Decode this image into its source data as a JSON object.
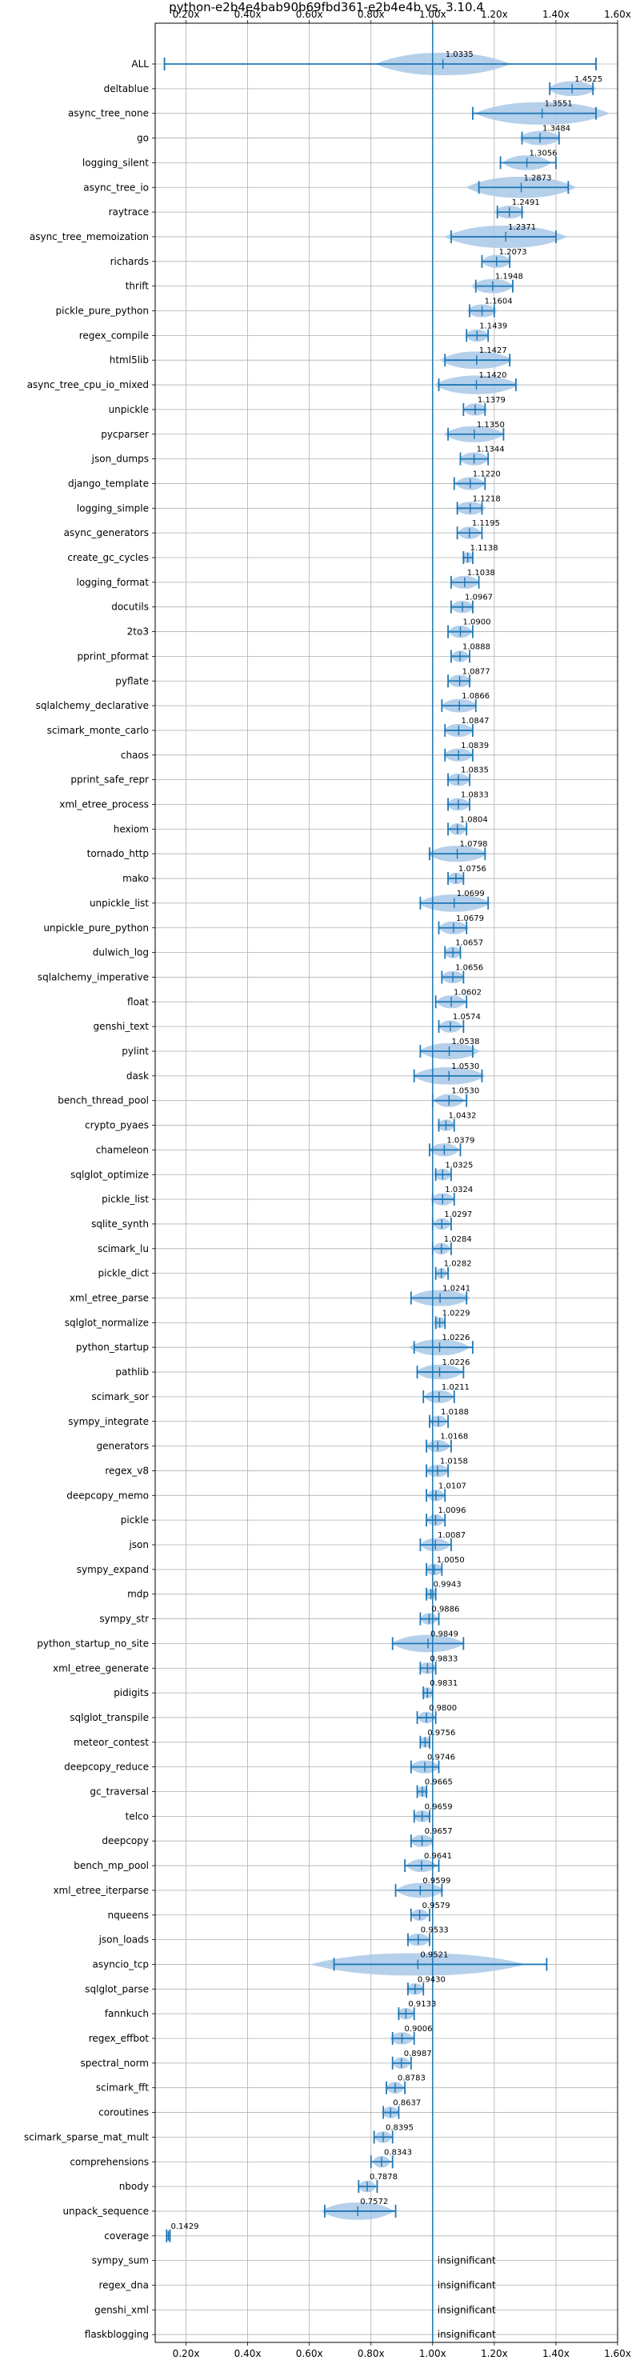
{
  "chart_data": {
    "type": "violin",
    "title": "python-e2b4e4bab90b69fbd361-e2b4e4b vs. 3.10.4",
    "xlim": [
      0.1,
      1.6
    ],
    "xticks": [
      0.2,
      0.4,
      0.6,
      0.8,
      1.0,
      1.2,
      1.4,
      1.6
    ],
    "xtick_labels": [
      "0.20x",
      "0.40x",
      "0.60x",
      "0.80x",
      "1.00x",
      "1.20x",
      "1.40x",
      "1.60x"
    ],
    "reference_line": 1.0,
    "grid": true,
    "colors": {
      "violin": "#a8c8e8",
      "errorbar": "#1f77b4",
      "refline": "#1f77b4",
      "grid": "#b0b0b0"
    },
    "insignificant_label": "insignificant",
    "benchmarks": [
      {
        "name": "ALL",
        "mean": 1.0335,
        "label": "1.0335",
        "min": 0.13,
        "max": 1.53,
        "width": 0.22
      },
      {
        "name": "deltablue",
        "mean": 1.4525,
        "label": "1.4525",
        "min": 1.38,
        "max": 1.52,
        "width": 0.08
      },
      {
        "name": "async_tree_none",
        "mean": 1.3551,
        "label": "1.3551",
        "min": 1.13,
        "max": 1.53,
        "width": 0.22
      },
      {
        "name": "go",
        "mean": 1.3484,
        "label": "1.3484",
        "min": 1.29,
        "max": 1.41,
        "width": 0.07
      },
      {
        "name": "logging_silent",
        "mean": 1.3056,
        "label": "1.3056",
        "min": 1.22,
        "max": 1.4,
        "width": 0.08
      },
      {
        "name": "async_tree_io",
        "mean": 1.2873,
        "label": "1.2873",
        "min": 1.15,
        "max": 1.44,
        "width": 0.18
      },
      {
        "name": "raytrace",
        "mean": 1.2491,
        "label": "1.2491",
        "min": 1.21,
        "max": 1.29,
        "width": 0.05
      },
      {
        "name": "async_tree_memoization",
        "mean": 1.2371,
        "label": "1.2371",
        "min": 1.06,
        "max": 1.4,
        "width": 0.2
      },
      {
        "name": "richards",
        "mean": 1.2073,
        "label": "1.2073",
        "min": 1.16,
        "max": 1.25,
        "width": 0.05
      },
      {
        "name": "thrift",
        "mean": 1.1948,
        "label": "1.1948",
        "min": 1.14,
        "max": 1.26,
        "width": 0.07
      },
      {
        "name": "pickle_pure_python",
        "mean": 1.1604,
        "label": "1.1604",
        "min": 1.12,
        "max": 1.2,
        "width": 0.05
      },
      {
        "name": "regex_compile",
        "mean": 1.1439,
        "label": "1.1439",
        "min": 1.11,
        "max": 1.18,
        "width": 0.04
      },
      {
        "name": "html5lib",
        "mean": 1.1427,
        "label": "1.1427",
        "min": 1.04,
        "max": 1.25,
        "width": 0.12
      },
      {
        "name": "async_tree_cpu_io_mixed",
        "mean": 1.142,
        "label": "1.1420",
        "min": 1.02,
        "max": 1.27,
        "width": 0.14
      },
      {
        "name": "unpickle",
        "mean": 1.1379,
        "label": "1.1379",
        "min": 1.1,
        "max": 1.17,
        "width": 0.04
      },
      {
        "name": "pycparser",
        "mean": 1.135,
        "label": "1.1350",
        "min": 1.05,
        "max": 1.23,
        "width": 0.1
      },
      {
        "name": "json_dumps",
        "mean": 1.1344,
        "label": "1.1344",
        "min": 1.09,
        "max": 1.18,
        "width": 0.05
      },
      {
        "name": "django_template",
        "mean": 1.122,
        "label": "1.1220",
        "min": 1.07,
        "max": 1.17,
        "width": 0.05
      },
      {
        "name": "logging_simple",
        "mean": 1.1218,
        "label": "1.1218",
        "min": 1.08,
        "max": 1.16,
        "width": 0.05
      },
      {
        "name": "async_generators",
        "mean": 1.1195,
        "label": "1.1195",
        "min": 1.08,
        "max": 1.16,
        "width": 0.04
      },
      {
        "name": "create_gc_cycles",
        "mean": 1.1138,
        "label": "1.1138",
        "min": 1.1,
        "max": 1.13,
        "width": 0.02
      },
      {
        "name": "logging_format",
        "mean": 1.1038,
        "label": "1.1038",
        "min": 1.06,
        "max": 1.15,
        "width": 0.05
      },
      {
        "name": "docutils",
        "mean": 1.0967,
        "label": "1.0967",
        "min": 1.06,
        "max": 1.13,
        "width": 0.04
      },
      {
        "name": "2to3",
        "mean": 1.09,
        "label": "1.0900",
        "min": 1.05,
        "max": 1.13,
        "width": 0.04
      },
      {
        "name": "pprint_pformat",
        "mean": 1.0888,
        "label": "1.0888",
        "min": 1.06,
        "max": 1.12,
        "width": 0.03
      },
      {
        "name": "pyflate",
        "mean": 1.0877,
        "label": "1.0877",
        "min": 1.05,
        "max": 1.12,
        "width": 0.04
      },
      {
        "name": "sqlalchemy_declarative",
        "mean": 1.0866,
        "label": "1.0866",
        "min": 1.03,
        "max": 1.14,
        "width": 0.06
      },
      {
        "name": "scimark_monte_carlo",
        "mean": 1.0847,
        "label": "1.0847",
        "min": 1.04,
        "max": 1.13,
        "width": 0.05
      },
      {
        "name": "chaos",
        "mean": 1.0839,
        "label": "1.0839",
        "min": 1.04,
        "max": 1.13,
        "width": 0.05
      },
      {
        "name": "pprint_safe_repr",
        "mean": 1.0835,
        "label": "1.0835",
        "min": 1.05,
        "max": 1.12,
        "width": 0.04
      },
      {
        "name": "xml_etree_process",
        "mean": 1.0833,
        "label": "1.0833",
        "min": 1.05,
        "max": 1.12,
        "width": 0.04
      },
      {
        "name": "hexiom",
        "mean": 1.0804,
        "label": "1.0804",
        "min": 1.05,
        "max": 1.11,
        "width": 0.03
      },
      {
        "name": "tornado_http",
        "mean": 1.0798,
        "label": "1.0798",
        "min": 0.99,
        "max": 1.17,
        "width": 0.1
      },
      {
        "name": "mako",
        "mean": 1.0756,
        "label": "1.0756",
        "min": 1.05,
        "max": 1.1,
        "width": 0.03
      },
      {
        "name": "unpickle_list",
        "mean": 1.0699,
        "label": "1.0699",
        "min": 0.96,
        "max": 1.18,
        "width": 0.12
      },
      {
        "name": "unpickle_pure_python",
        "mean": 1.0679,
        "label": "1.0679",
        "min": 1.02,
        "max": 1.11,
        "width": 0.05
      },
      {
        "name": "dulwich_log",
        "mean": 1.0657,
        "label": "1.0657",
        "min": 1.04,
        "max": 1.09,
        "width": 0.03
      },
      {
        "name": "sqlalchemy_imperative",
        "mean": 1.0656,
        "label": "1.0656",
        "min": 1.03,
        "max": 1.1,
        "width": 0.04
      },
      {
        "name": "float",
        "mean": 1.0602,
        "label": "1.0602",
        "min": 1.01,
        "max": 1.11,
        "width": 0.05
      },
      {
        "name": "genshi_text",
        "mean": 1.0574,
        "label": "1.0574",
        "min": 1.02,
        "max": 1.1,
        "width": 0.04
      },
      {
        "name": "pylint",
        "mean": 1.0538,
        "label": "1.0538",
        "min": 0.96,
        "max": 1.13,
        "width": 0.1
      },
      {
        "name": "dask",
        "mean": 1.053,
        "label": "1.0530",
        "min": 0.94,
        "max": 1.16,
        "width": 0.12
      },
      {
        "name": "bench_thread_pool",
        "mean": 1.053,
        "label": "1.0530",
        "min": 1.0,
        "max": 1.11,
        "width": 0.05
      },
      {
        "name": "crypto_pyaes",
        "mean": 1.0432,
        "label": "1.0432",
        "min": 1.02,
        "max": 1.07,
        "width": 0.03
      },
      {
        "name": "chameleon",
        "mean": 1.0379,
        "label": "1.0379",
        "min": 0.99,
        "max": 1.09,
        "width": 0.05
      },
      {
        "name": "sqlglot_optimize",
        "mean": 1.0325,
        "label": "1.0325",
        "min": 1.01,
        "max": 1.06,
        "width": 0.03
      },
      {
        "name": "pickle_list",
        "mean": 1.0324,
        "label": "1.0324",
        "min": 1.0,
        "max": 1.07,
        "width": 0.04
      },
      {
        "name": "sqlite_synth",
        "mean": 1.0297,
        "label": "1.0297",
        "min": 1.0,
        "max": 1.06,
        "width": 0.03
      },
      {
        "name": "scimark_lu",
        "mean": 1.0284,
        "label": "1.0284",
        "min": 1.0,
        "max": 1.06,
        "width": 0.03
      },
      {
        "name": "pickle_dict",
        "mean": 1.0282,
        "label": "1.0282",
        "min": 1.01,
        "max": 1.05,
        "width": 0.02
      },
      {
        "name": "xml_etree_parse",
        "mean": 1.0241,
        "label": "1.0241",
        "min": 0.93,
        "max": 1.11,
        "width": 0.1
      },
      {
        "name": "sqlglot_normalize",
        "mean": 1.0229,
        "label": "1.0229",
        "min": 1.01,
        "max": 1.04,
        "width": 0.02
      },
      {
        "name": "python_startup",
        "mean": 1.0226,
        "label": "1.0226",
        "min": 0.94,
        "max": 1.13,
        "width": 0.1
      },
      {
        "name": "pathlib",
        "mean": 1.0226,
        "label": "1.0226",
        "min": 0.95,
        "max": 1.1,
        "width": 0.08
      },
      {
        "name": "scimark_sor",
        "mean": 1.0211,
        "label": "1.0211",
        "min": 0.97,
        "max": 1.07,
        "width": 0.05
      },
      {
        "name": "sympy_integrate",
        "mean": 1.0188,
        "label": "1.0188",
        "min": 0.99,
        "max": 1.05,
        "width": 0.03
      },
      {
        "name": "generators",
        "mean": 1.0168,
        "label": "1.0168",
        "min": 0.98,
        "max": 1.06,
        "width": 0.04
      },
      {
        "name": "regex_v8",
        "mean": 1.0158,
        "label": "1.0158",
        "min": 0.98,
        "max": 1.05,
        "width": 0.04
      },
      {
        "name": "deepcopy_memo",
        "mean": 1.0107,
        "label": "1.0107",
        "min": 0.98,
        "max": 1.04,
        "width": 0.03
      },
      {
        "name": "pickle",
        "mean": 1.0096,
        "label": "1.0096",
        "min": 0.98,
        "max": 1.04,
        "width": 0.03
      },
      {
        "name": "json",
        "mean": 1.0087,
        "label": "1.0087",
        "min": 0.96,
        "max": 1.06,
        "width": 0.05
      },
      {
        "name": "sympy_expand",
        "mean": 1.005,
        "label": "1.0050",
        "min": 0.98,
        "max": 1.03,
        "width": 0.03
      },
      {
        "name": "mdp",
        "mean": 0.9943,
        "label": "0.9943",
        "min": 0.98,
        "max": 1.01,
        "width": 0.02
      },
      {
        "name": "sympy_str",
        "mean": 0.9886,
        "label": "0.9886",
        "min": 0.96,
        "max": 1.02,
        "width": 0.03
      },
      {
        "name": "python_startup_no_site",
        "mean": 0.9849,
        "label": "0.9849",
        "min": 0.87,
        "max": 1.1,
        "width": 0.12
      },
      {
        "name": "xml_etree_generate",
        "mean": 0.9833,
        "label": "0.9833",
        "min": 0.96,
        "max": 1.01,
        "width": 0.03
      },
      {
        "name": "pidigits",
        "mean": 0.9831,
        "label": "0.9831",
        "min": 0.97,
        "max": 1.0,
        "width": 0.02
      },
      {
        "name": "sqlglot_transpile",
        "mean": 0.98,
        "label": "0.9800",
        "min": 0.95,
        "max": 1.01,
        "width": 0.03
      },
      {
        "name": "meteor_contest",
        "mean": 0.9756,
        "label": "0.9756",
        "min": 0.96,
        "max": 0.99,
        "width": 0.02
      },
      {
        "name": "deepcopy_reduce",
        "mean": 0.9746,
        "label": "0.9746",
        "min": 0.93,
        "max": 1.02,
        "width": 0.05
      },
      {
        "name": "gc_traversal",
        "mean": 0.9665,
        "label": "0.9665",
        "min": 0.95,
        "max": 0.98,
        "width": 0.02
      },
      {
        "name": "telco",
        "mean": 0.9659,
        "label": "0.9659",
        "min": 0.94,
        "max": 0.99,
        "width": 0.03
      },
      {
        "name": "deepcopy",
        "mean": 0.9657,
        "label": "0.9657",
        "min": 0.93,
        "max": 1.0,
        "width": 0.04
      },
      {
        "name": "bench_mp_pool",
        "mean": 0.9641,
        "label": "0.9641",
        "min": 0.91,
        "max": 1.02,
        "width": 0.05
      },
      {
        "name": "xml_etree_iterparse",
        "mean": 0.9599,
        "label": "0.9599",
        "min": 0.88,
        "max": 1.03,
        "width": 0.08
      },
      {
        "name": "nqueens",
        "mean": 0.9579,
        "label": "0.9579",
        "min": 0.93,
        "max": 0.99,
        "width": 0.03
      },
      {
        "name": "json_loads",
        "mean": 0.9533,
        "label": "0.9533",
        "min": 0.92,
        "max": 0.99,
        "width": 0.04
      },
      {
        "name": "asyncio_tcp",
        "mean": 0.9521,
        "label": "0.9521",
        "min": 0.68,
        "max": 1.37,
        "width": 0.35
      },
      {
        "name": "sqlglot_parse",
        "mean": 0.943,
        "label": "0.9430",
        "min": 0.92,
        "max": 0.97,
        "width": 0.03
      },
      {
        "name": "fannkuch",
        "mean": 0.9133,
        "label": "0.9133",
        "min": 0.89,
        "max": 0.94,
        "width": 0.03
      },
      {
        "name": "regex_effbot",
        "mean": 0.9006,
        "label": "0.9006",
        "min": 0.87,
        "max": 0.94,
        "width": 0.04
      },
      {
        "name": "spectral_norm",
        "mean": 0.8987,
        "label": "0.8987",
        "min": 0.87,
        "max": 0.93,
        "width": 0.03
      },
      {
        "name": "scimark_fft",
        "mean": 0.8783,
        "label": "0.8783",
        "min": 0.85,
        "max": 0.91,
        "width": 0.03
      },
      {
        "name": "coroutines",
        "mean": 0.8637,
        "label": "0.8637",
        "min": 0.84,
        "max": 0.89,
        "width": 0.03
      },
      {
        "name": "scimark_sparse_mat_mult",
        "mean": 0.8395,
        "label": "0.8395",
        "min": 0.81,
        "max": 0.87,
        "width": 0.03
      },
      {
        "name": "comprehensions",
        "mean": 0.8343,
        "label": "0.8343",
        "min": 0.8,
        "max": 0.87,
        "width": 0.03
      },
      {
        "name": "nbody",
        "mean": 0.7878,
        "label": "0.7878",
        "min": 0.76,
        "max": 0.82,
        "width": 0.03
      },
      {
        "name": "unpack_sequence",
        "mean": 0.7572,
        "label": "0.7572",
        "min": 0.65,
        "max": 0.88,
        "width": 0.12
      },
      {
        "name": "coverage",
        "mean": 0.1429,
        "label": "0.1429",
        "min": 0.137,
        "max": 0.148,
        "width": 0.008
      },
      {
        "name": "sympy_sum",
        "insignificant": true
      },
      {
        "name": "regex_dna",
        "insignificant": true
      },
      {
        "name": "genshi_xml",
        "insignificant": true
      },
      {
        "name": "flaskblogging",
        "insignificant": true
      }
    ]
  }
}
